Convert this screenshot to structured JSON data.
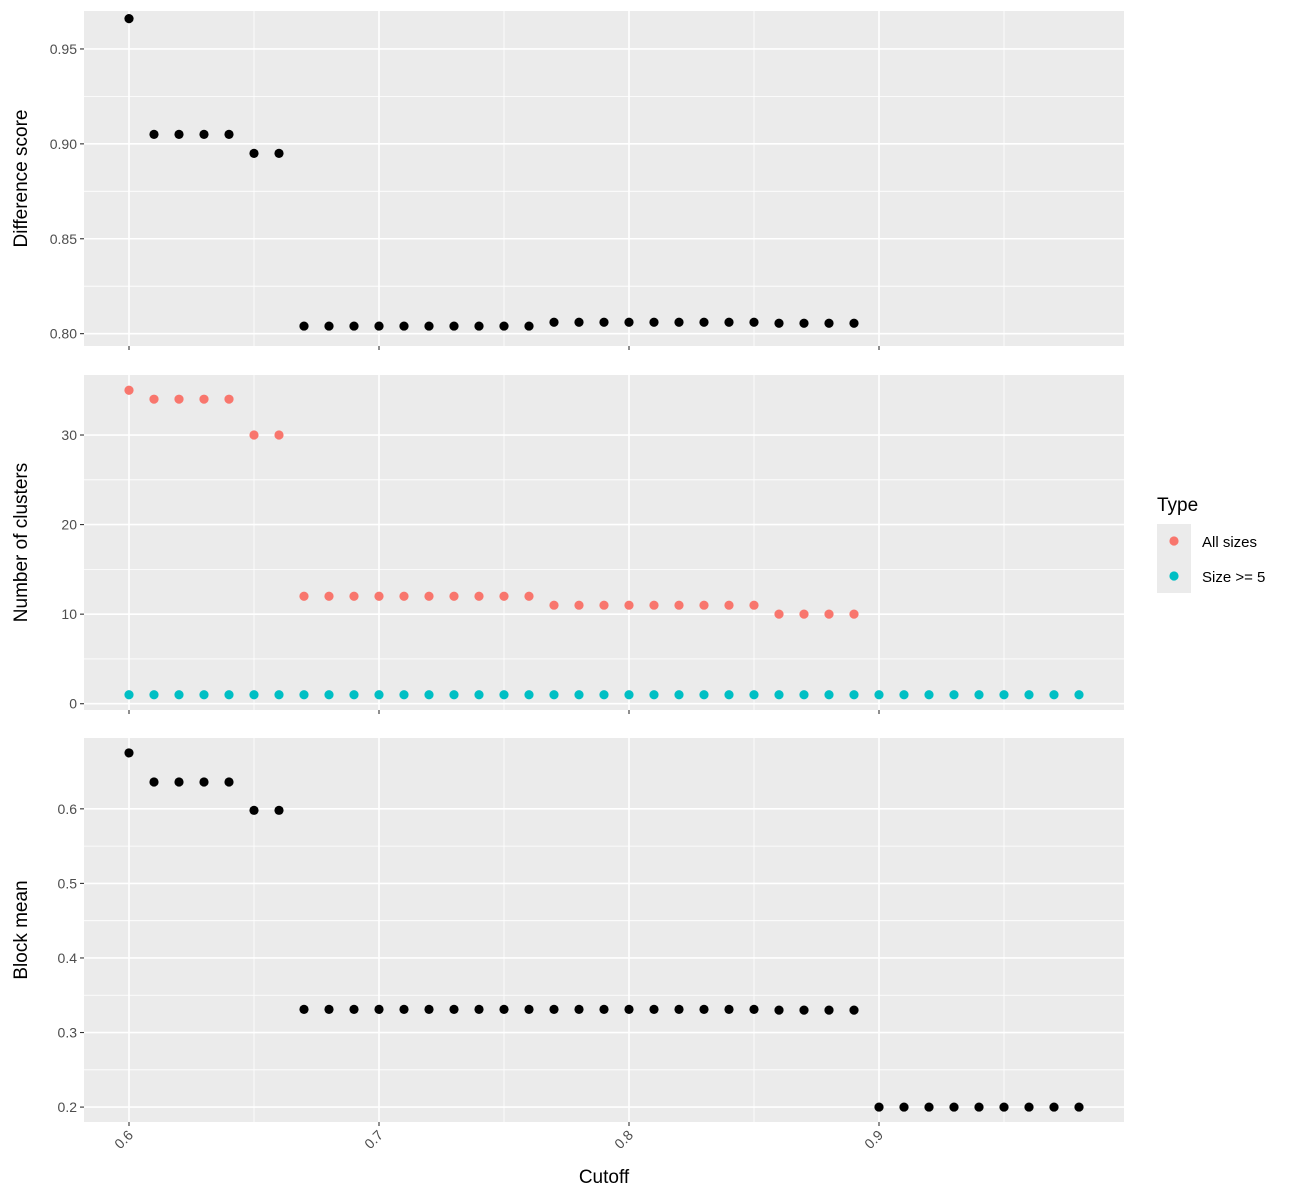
{
  "chart_data": {
    "type": "scatter",
    "shared_x": {
      "label": "Cutoff",
      "lim": [
        0.582,
        0.998
      ],
      "ticks": [
        0.6,
        0.7,
        0.8,
        0.9
      ],
      "tick_labels": [
        "0.6",
        "0.7",
        "0.8",
        "0.9"
      ]
    },
    "panels": [
      {
        "ylabel": "Difference score",
        "ylim": [
          0.7935,
          0.97
        ],
        "yticks": [
          0.8,
          0.85,
          0.9,
          0.95
        ],
        "ytick_labels": [
          "0.80",
          "0.85",
          "0.90",
          "0.95"
        ],
        "series": [
          {
            "color": "#000000",
            "x": [
              0.6,
              0.61,
              0.62,
              0.63,
              0.64,
              0.65,
              0.66,
              0.67,
              0.68,
              0.69,
              0.7,
              0.71,
              0.72,
              0.73,
              0.74,
              0.75,
              0.76,
              0.77,
              0.78,
              0.79,
              0.8,
              0.81,
              0.82,
              0.83,
              0.84,
              0.85,
              0.86,
              0.87,
              0.88,
              0.89
            ],
            "y": [
              0.966,
              0.905,
              0.905,
              0.905,
              0.905,
              0.895,
              0.895,
              0.804,
              0.804,
              0.804,
              0.804,
              0.804,
              0.804,
              0.804,
              0.804,
              0.804,
              0.804,
              0.806,
              0.806,
              0.806,
              0.806,
              0.806,
              0.806,
              0.806,
              0.806,
              0.806,
              0.8055,
              0.8055,
              0.8055,
              0.8055
            ]
          }
        ]
      },
      {
        "ylabel": "Number of clusters",
        "ylim": [
          -0.7,
          36.7
        ],
        "yticks": [
          0,
          10,
          20,
          30
        ],
        "ytick_labels": [
          "0",
          "10",
          "20",
          "30"
        ],
        "series": [
          {
            "name": "All sizes",
            "color": "#F8766D",
            "x": [
              0.6,
              0.61,
              0.62,
              0.63,
              0.64,
              0.65,
              0.66,
              0.67,
              0.68,
              0.69,
              0.7,
              0.71,
              0.72,
              0.73,
              0.74,
              0.75,
              0.76,
              0.77,
              0.78,
              0.79,
              0.8,
              0.81,
              0.82,
              0.83,
              0.84,
              0.85,
              0.86,
              0.87,
              0.88,
              0.89
            ],
            "y": [
              35,
              34,
              34,
              34,
              34,
              30,
              30,
              12,
              12,
              12,
              12,
              12,
              12,
              12,
              12,
              12,
              12,
              11,
              11,
              11,
              11,
              11,
              11,
              11,
              11,
              11,
              10,
              10,
              10,
              10
            ]
          },
          {
            "name": "Size >= 5",
            "color": "#00BFC4",
            "x": [
              0.6,
              0.61,
              0.62,
              0.63,
              0.64,
              0.65,
              0.66,
              0.67,
              0.68,
              0.69,
              0.7,
              0.71,
              0.72,
              0.73,
              0.74,
              0.75,
              0.76,
              0.77,
              0.78,
              0.79,
              0.8,
              0.81,
              0.82,
              0.83,
              0.84,
              0.85,
              0.86,
              0.87,
              0.88,
              0.89,
              0.9,
              0.91,
              0.92,
              0.93,
              0.94,
              0.95,
              0.96,
              0.97,
              0.98
            ],
            "y": [
              1,
              1,
              1,
              1,
              1,
              1,
              1,
              1,
              1,
              1,
              1,
              1,
              1,
              1,
              1,
              1,
              1,
              1,
              1,
              1,
              1,
              1,
              1,
              1,
              1,
              1,
              1,
              1,
              1,
              1,
              1,
              1,
              1,
              1,
              1,
              1,
              1,
              1,
              1
            ]
          }
        ]
      },
      {
        "ylabel": "Block mean",
        "ylim": [
          0.18,
          0.695
        ],
        "yticks": [
          0.2,
          0.3,
          0.4,
          0.5,
          0.6
        ],
        "ytick_labels": [
          "0.2",
          "0.3",
          "0.4",
          "0.5",
          "0.6"
        ],
        "series": [
          {
            "color": "#000000",
            "x": [
              0.6,
              0.61,
              0.62,
              0.63,
              0.64,
              0.65,
              0.66,
              0.67,
              0.68,
              0.69,
              0.7,
              0.71,
              0.72,
              0.73,
              0.74,
              0.75,
              0.76,
              0.77,
              0.78,
              0.79,
              0.8,
              0.81,
              0.82,
              0.83,
              0.84,
              0.85,
              0.86,
              0.87,
              0.88,
              0.89,
              0.9,
              0.91,
              0.92,
              0.93,
              0.94,
              0.95,
              0.96,
              0.97,
              0.98
            ],
            "y": [
              0.675,
              0.636,
              0.636,
              0.636,
              0.636,
              0.598,
              0.598,
              0.331,
              0.331,
              0.331,
              0.331,
              0.331,
              0.331,
              0.331,
              0.331,
              0.331,
              0.331,
              0.331,
              0.331,
              0.331,
              0.331,
              0.331,
              0.331,
              0.331,
              0.331,
              0.331,
              0.33,
              0.33,
              0.33,
              0.33,
              0.2,
              0.2,
              0.2,
              0.2,
              0.2,
              0.2,
              0.2,
              0.2,
              0.2
            ]
          }
        ]
      }
    ],
    "legend": {
      "title": "Type",
      "placement": "right",
      "entries": [
        {
          "label": "All sizes",
          "color": "#F8766D"
        },
        {
          "label": "Size >= 5",
          "color": "#00BFC4"
        }
      ]
    },
    "grid": true,
    "panel_background": "#EBEBEB",
    "grid_color": "#FFFFFF"
  }
}
